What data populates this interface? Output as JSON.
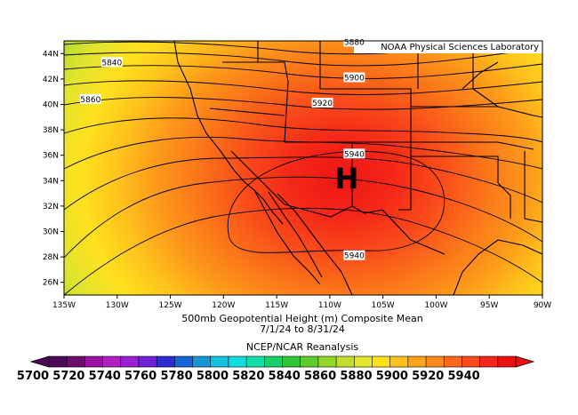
{
  "credit": "NOAA Physical Sciences Laboratory",
  "high_marker": "H",
  "lat_labels": [
    "44N",
    "42N",
    "40N",
    "38N",
    "36N",
    "34N",
    "32N",
    "30N",
    "28N",
    "26N"
  ],
  "lon_labels": [
    "135W",
    "130W",
    "125W",
    "120W",
    "115W",
    "110W",
    "105W",
    "100W",
    "95W",
    "90W"
  ],
  "contour_labels": [
    "5840",
    "5860",
    "5880",
    "5900",
    "5920",
    "5940",
    "5940"
  ],
  "caption": {
    "line1": "500mb Geopotential Height (m) Composite Mean",
    "line2": "7/1/24  to 8/31/24",
    "line3": "NCEP/NCAR Reanalysis"
  },
  "colorbar": {
    "labels": [
      "5700",
      "5720",
      "5740",
      "5760",
      "5780",
      "5800",
      "5820",
      "5840",
      "5860",
      "5880",
      "5900",
      "5920",
      "5940"
    ],
    "colors": [
      "#4b0a55",
      "#6e0c6e",
      "#9a11a3",
      "#b31ec2",
      "#9b1fd3",
      "#6f22d6",
      "#2a2bd4",
      "#1466d4",
      "#1497d2",
      "#12c3e0",
      "#10dede",
      "#10e0a8",
      "#18d06a",
      "#2fc834",
      "#5ecc2a",
      "#94d62a",
      "#c4de2c",
      "#e4e42c",
      "#ffe11a",
      "#ffc21a",
      "#ffa31a",
      "#ff8a1a",
      "#ff6a1a",
      "#ff4a1a",
      "#f7251a",
      "#ee1010"
    ]
  }
}
